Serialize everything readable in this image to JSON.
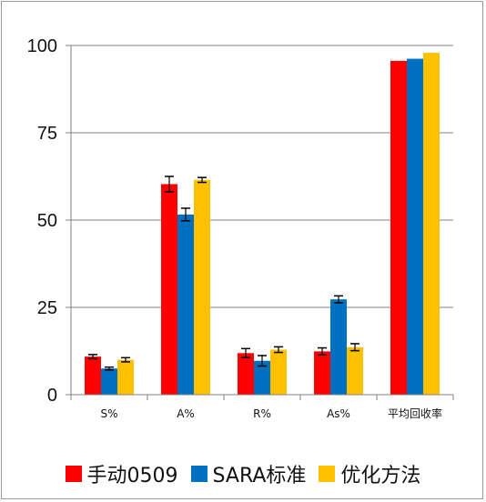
{
  "chart_data": {
    "type": "bar",
    "categories": [
      "S%",
      "A%",
      "R%",
      "As%",
      "平均回收率"
    ],
    "series": [
      {
        "name": "手动0509",
        "color": "#ff0000",
        "values": [
          10.9,
          60.3,
          11.9,
          12.4,
          95.6
        ],
        "errors": [
          0.6,
          2.2,
          1.3,
          1.0,
          null
        ]
      },
      {
        "name": "SARA标准",
        "color": "#0070c0",
        "values": [
          7.5,
          51.6,
          9.7,
          27.3,
          96.2
        ],
        "errors": [
          0.4,
          1.8,
          1.5,
          1.0,
          null
        ]
      },
      {
        "name": "优化方法",
        "color": "#ffc000",
        "values": [
          10.0,
          61.5,
          12.9,
          13.6,
          97.9
        ],
        "errors": [
          0.6,
          0.7,
          0.8,
          1.0,
          null
        ]
      }
    ],
    "yticks": [
      0,
      25,
      50,
      75,
      100
    ],
    "ylim": [
      0,
      100
    ],
    "grid": true,
    "legend_position": "bottom"
  }
}
